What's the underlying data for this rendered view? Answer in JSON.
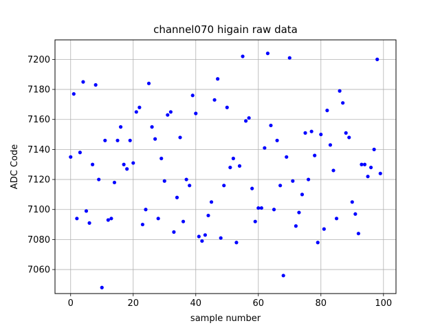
{
  "chart_data": {
    "type": "scatter",
    "title": "channel070 higain raw data",
    "xlabel": "sample number",
    "ylabel": "ADC Code",
    "xlim": [
      -5,
      104
    ],
    "ylim": [
      7044,
      7213
    ],
    "xticks": [
      0,
      20,
      40,
      60,
      80,
      100
    ],
    "yticks": [
      7060,
      7080,
      7100,
      7120,
      7140,
      7160,
      7180,
      7200
    ],
    "grid": true,
    "marker_color": "#0000ff",
    "series": [
      {
        "x": [
          0,
          1,
          2,
          3,
          4,
          5,
          6,
          7,
          8,
          9,
          10,
          11,
          12,
          13,
          14,
          15,
          16,
          17,
          18,
          19,
          20,
          21,
          22,
          23,
          24,
          25,
          26,
          27,
          28,
          29,
          30,
          31,
          32,
          33,
          34,
          35,
          36,
          37,
          38,
          39,
          40,
          41,
          42,
          43,
          44,
          45,
          46,
          47,
          48,
          49,
          50,
          51,
          52,
          53,
          54,
          55,
          56,
          57,
          58,
          59,
          60,
          61,
          62,
          63,
          64,
          65,
          66,
          67,
          68,
          69,
          70,
          71,
          72,
          73,
          74,
          75,
          76,
          77,
          78,
          79,
          80,
          81,
          82,
          83,
          84,
          85,
          86,
          87,
          88,
          89,
          90,
          91,
          92,
          93,
          94,
          95,
          96,
          97,
          98,
          99
        ],
        "y": [
          7135,
          7177,
          7094,
          7138,
          7185,
          7099,
          7091,
          7130,
          7183,
          7120,
          7048,
          7146,
          7093,
          7094,
          7118,
          7146,
          7155,
          7130,
          7127,
          7146,
          7131,
          7165,
          7168,
          7090,
          7100,
          7184,
          7155,
          7147,
          7094,
          7134,
          7119,
          7163,
          7165,
          7085,
          7108,
          7148,
          7092,
          7120,
          7116,
          7176,
          7164,
          7082,
          7079,
          7083,
          7096,
          7105,
          7173,
          7187,
          7081,
          7116,
          7168,
          7128,
          7134,
          7078,
          7129,
          7202,
          7159,
          7161,
          7114,
          7092,
          7101,
          7101,
          7141,
          7204,
          7156,
          7100,
          7146,
          7116,
          7056,
          7135,
          7201,
          7119,
          7089,
          7098,
          7110,
          7151,
          7120,
          7152,
          7136,
          7078,
          7150,
          7087,
          7166,
          7143,
          7126,
          7094,
          7179,
          7171,
          7151,
          7148,
          7105,
          7097,
          7084,
          7130,
          7130,
          7122,
          7128,
          7140,
          7200,
          7124
        ]
      }
    ]
  }
}
